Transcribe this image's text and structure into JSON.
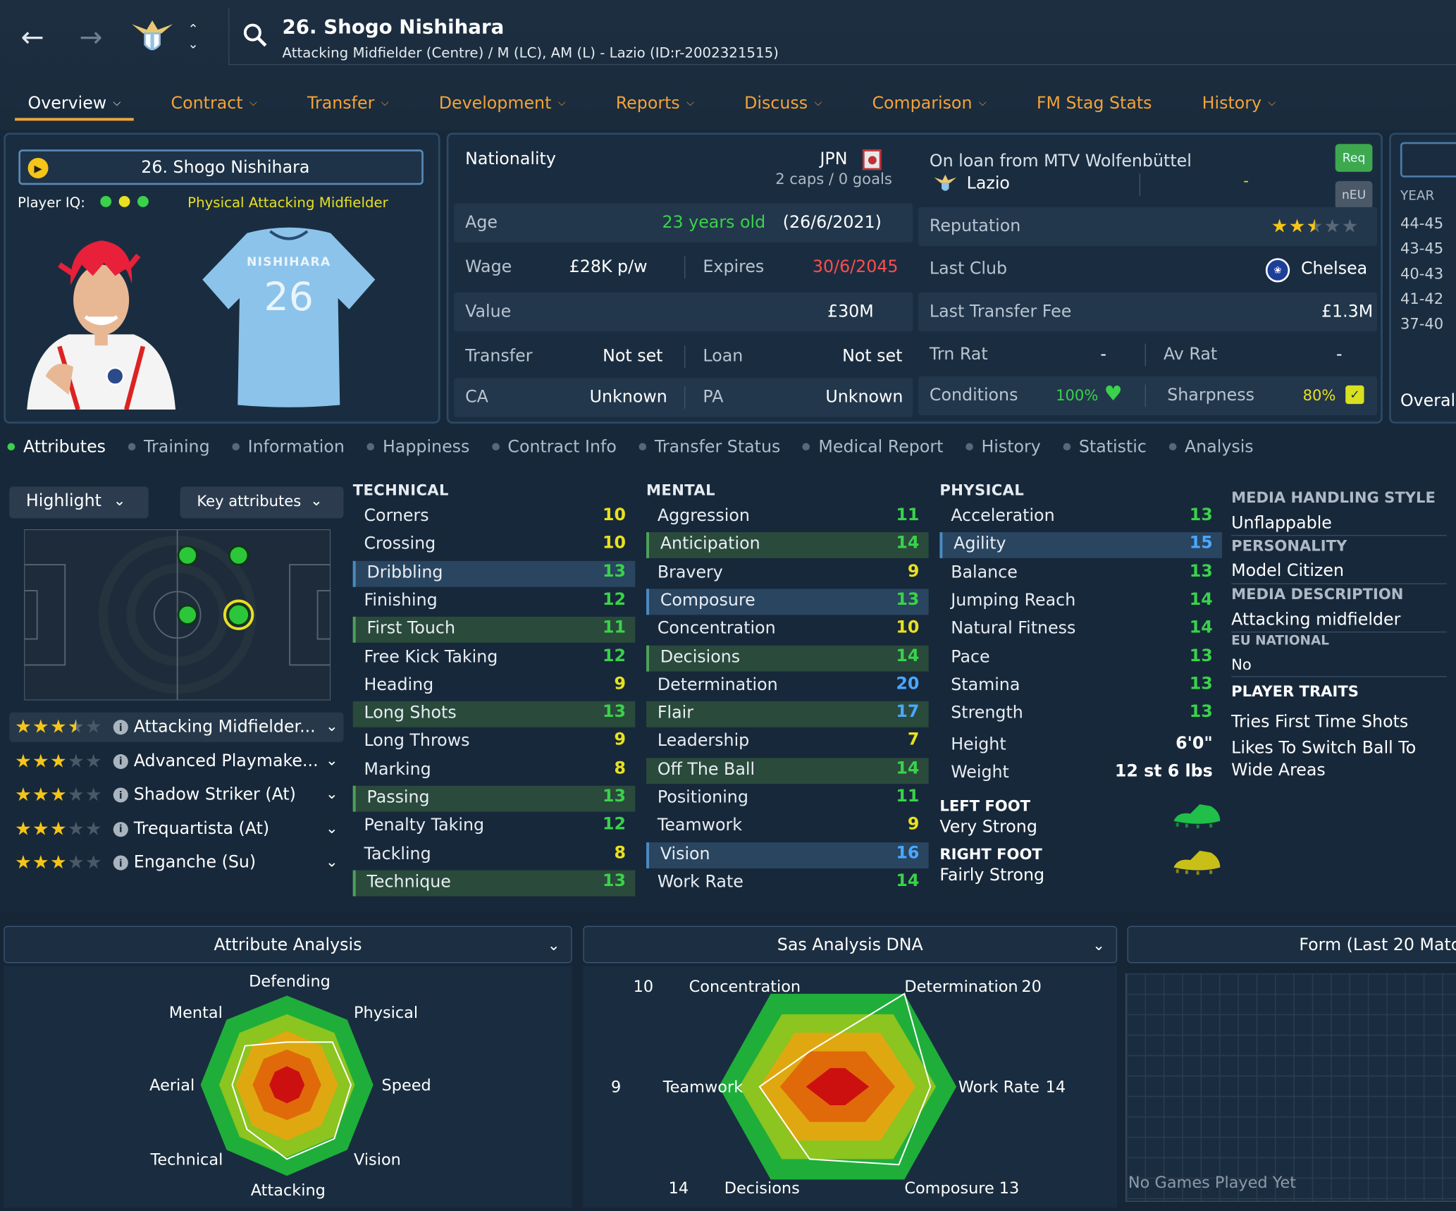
{
  "header": {
    "title": "26. Shogo Nishihara",
    "subtitle": "Attacking Midfielder (Centre) / M (LC), AM (L) - Lazio (ID:r-2002321515)"
  },
  "tabs": [
    {
      "label": "Overview"
    },
    {
      "label": "Contract"
    },
    {
      "label": "Transfer"
    },
    {
      "label": "Development"
    },
    {
      "label": "Reports"
    },
    {
      "label": "Discuss"
    },
    {
      "label": "Comparison"
    },
    {
      "label": "FM Stag Stats"
    },
    {
      "label": "History"
    }
  ],
  "profile": {
    "name": "26. Shogo Nishihara",
    "iq_label": "Player IQ:",
    "iq_role": "Physical Attacking Midfielder",
    "shirt_name": "NISHIHARA",
    "shirt_number": "26"
  },
  "info": {
    "nationality_label": "Nationality",
    "nationality": "JPN",
    "caps": "2 caps / 0 goals",
    "age_label": "Age",
    "age": "23 years old",
    "dob": "(26/6/2021)",
    "wage_label": "Wage",
    "wage": "£28K p/w",
    "expires_label": "Expires",
    "expires": "30/6/2045",
    "value_label": "Value",
    "value": "£30M",
    "transfer_label": "Transfer",
    "transfer": "Not set",
    "loan_label": "Loan",
    "loan": "Not set",
    "ca_label": "CA",
    "ca": "Unknown",
    "pa_label": "PA",
    "pa": "Unknown"
  },
  "club": {
    "loan_from": "On loan from MTV Wolfenbüttel",
    "club": "Lazio",
    "dash": "-",
    "req": "Req",
    "neu": "nEU",
    "reputation_label": "Reputation",
    "reputation_stars": 2.5,
    "last_club_label": "Last Club",
    "last_club": "Chelsea",
    "fee_label": "Last Transfer Fee",
    "fee": "£1.3M",
    "trn_label": "Trn Rat",
    "trn": "-",
    "avrat_label": "Av Rat",
    "avrat": "-",
    "conditions_label": "Conditions",
    "conditions": "100%",
    "sharpness_label": "Sharpness",
    "sharpness": "80%"
  },
  "history_mini": {
    "year_label": "YEAR",
    "years": [
      "44-45",
      "43-45",
      "40-43",
      "41-42",
      "37-40"
    ],
    "overall": "Overall"
  },
  "subtabs": [
    {
      "label": "Attributes"
    },
    {
      "label": "Training"
    },
    {
      "label": "Information"
    },
    {
      "label": "Happiness"
    },
    {
      "label": "Contract Info"
    },
    {
      "label": "Transfer Status"
    },
    {
      "label": "Medical Report"
    },
    {
      "label": "History"
    },
    {
      "label": "Statistic"
    },
    {
      "label": "Analysis"
    }
  ],
  "controls": {
    "highlight": "Highlight",
    "key_attributes": "Key attributes"
  },
  "roles": [
    {
      "name": "Attacking Midfielder...",
      "stars": 3.5
    },
    {
      "name": "Advanced Playmake...",
      "stars": 3
    },
    {
      "name": "Shadow Striker (At)",
      "stars": 3
    },
    {
      "name": "Trequartista (At)",
      "stars": 3
    },
    {
      "name": "Enganche (Su)",
      "stars": 3
    }
  ],
  "technical": {
    "heading": "TECHNICAL",
    "items": [
      {
        "name": "Corners",
        "value": "10"
      },
      {
        "name": "Crossing",
        "value": "10"
      },
      {
        "name": "Dribbling",
        "value": "13"
      },
      {
        "name": "Finishing",
        "value": "12"
      },
      {
        "name": "First Touch",
        "value": "11"
      },
      {
        "name": "Free Kick Taking",
        "value": "12"
      },
      {
        "name": "Heading",
        "value": "9"
      },
      {
        "name": "Long Shots",
        "value": "13"
      },
      {
        "name": "Long Throws",
        "value": "9"
      },
      {
        "name": "Marking",
        "value": "8"
      },
      {
        "name": "Passing",
        "value": "13"
      },
      {
        "name": "Penalty Taking",
        "value": "12"
      },
      {
        "name": "Tackling",
        "value": "8"
      },
      {
        "name": "Technique",
        "value": "13"
      }
    ]
  },
  "mental": {
    "heading": "MENTAL",
    "items": [
      {
        "name": "Aggression",
        "value": "11"
      },
      {
        "name": "Anticipation",
        "value": "14"
      },
      {
        "name": "Bravery",
        "value": "9"
      },
      {
        "name": "Composure",
        "value": "13"
      },
      {
        "name": "Concentration",
        "value": "10"
      },
      {
        "name": "Decisions",
        "value": "14"
      },
      {
        "name": "Determination",
        "value": "20"
      },
      {
        "name": "Flair",
        "value": "17"
      },
      {
        "name": "Leadership",
        "value": "7"
      },
      {
        "name": "Off The Ball",
        "value": "14"
      },
      {
        "name": "Positioning",
        "value": "11"
      },
      {
        "name": "Teamwork",
        "value": "9"
      },
      {
        "name": "Vision",
        "value": "16"
      },
      {
        "name": "Work Rate",
        "value": "14"
      }
    ]
  },
  "physical": {
    "heading": "PHYSICAL",
    "items": [
      {
        "name": "Acceleration",
        "value": "13"
      },
      {
        "name": "Agility",
        "value": "15"
      },
      {
        "name": "Balance",
        "value": "13"
      },
      {
        "name": "Jumping Reach",
        "value": "14"
      },
      {
        "name": "Natural Fitness",
        "value": "14"
      },
      {
        "name": "Pace",
        "value": "13"
      },
      {
        "name": "Stamina",
        "value": "13"
      },
      {
        "name": "Strength",
        "value": "13"
      }
    ],
    "height_label": "Height",
    "height": "6'0\"",
    "weight_label": "Weight",
    "weight": "12 st 6 lbs",
    "left_foot_label": "LEFT FOOT",
    "left_foot": "Very Strong",
    "right_foot_label": "RIGHT FOOT",
    "right_foot": "Fairly Strong"
  },
  "side": {
    "media_style_label": "MEDIA HANDLING STYLE",
    "media_style": "Unflappable",
    "personality_label": "PERSONALITY",
    "personality": "Model Citizen",
    "media_desc_label": "MEDIA DESCRIPTION",
    "media_desc": "Attacking midfielder",
    "eu_label": "EU NATIONAL",
    "eu": "No",
    "traits_label": "PLAYER TRAITS",
    "traits": [
      "Tries First Time Shots",
      "Likes To Switch Ball To",
      "Wide Areas"
    ]
  },
  "analysis": {
    "attr_title": "Attribute Analysis",
    "attr_labels": {
      "top": "Defending",
      "tr": "Physical",
      "r": "Speed",
      "br": "Vision",
      "bottom": "Attacking",
      "bl": "Technical",
      "l": "Aerial",
      "tl": "Mental"
    },
    "dna_title": "Sas Analysis DNA",
    "dna_labels": {
      "tl": "Concentration",
      "tl_v": "10",
      "tr": "Determination",
      "tr_v": "20",
      "l": "Teamwork",
      "l_v": "9",
      "r": "Work Rate",
      "r_v": "14",
      "bl": "Decisions",
      "bl_v": "14",
      "br": "Composure",
      "br_v": "13"
    },
    "form_title": "Form (Last 20 Matc",
    "form_empty": "No Games Played Yet"
  },
  "colors": {
    "accent": "#f2a33a",
    "green": "#39d24a",
    "yellow": "#e8e020",
    "blue_val": "#4aa8ff",
    "red": "#ff4d4d"
  }
}
